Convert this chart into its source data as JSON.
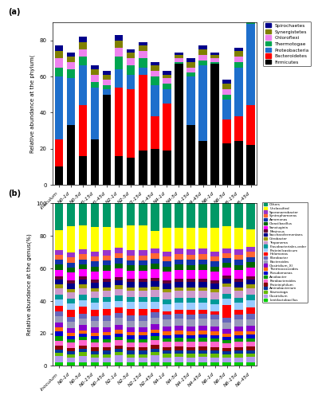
{
  "phylum_labels": [
    "Inoculum",
    "N0-1d",
    "N0-5d",
    "N0-15d",
    "N0-45d",
    "N2-1d",
    "N2-5d",
    "N2-15d",
    "N2-45d",
    "N4-1d",
    "N4-5d",
    "N4-15d",
    "N4-45d",
    "N6-1d",
    "N6-5d",
    "N6-15d",
    "N6-45d"
  ],
  "phylum_data": {
    "Firmicutes": [
      10,
      33,
      16,
      25,
      50,
      16,
      15,
      19,
      20,
      19,
      67,
      33,
      24,
      67,
      23,
      24,
      22
    ],
    "Bacteroidetes": [
      15,
      0,
      28,
      0,
      0,
      38,
      38,
      42,
      18,
      26,
      0,
      0,
      0,
      0,
      13,
      14,
      22
    ],
    "Proteobacteria": [
      35,
      26,
      22,
      29,
      3,
      10,
      8,
      4,
      17,
      8,
      0,
      27,
      42,
      0,
      11,
      27,
      45
    ],
    "Thermotogae": [
      5,
      5,
      5,
      3,
      2,
      7,
      5,
      5,
      5,
      3,
      1,
      2,
      3,
      1,
      3,
      3,
      3
    ],
    "Chloroflexi": [
      5,
      4,
      4,
      4,
      3,
      5,
      4,
      4,
      3,
      3,
      2,
      3,
      3,
      2,
      3,
      3,
      3
    ],
    "Synergistetes": [
      4,
      3,
      4,
      3,
      3,
      4,
      3,
      3,
      3,
      2,
      2,
      3,
      3,
      2,
      3,
      3,
      3
    ],
    "Spirochaetes": [
      3,
      2,
      3,
      2,
      2,
      3,
      2,
      2,
      2,
      2,
      1,
      2,
      2,
      1,
      2,
      2,
      2
    ]
  },
  "phylum_colors": {
    "Firmicutes": "#000000",
    "Bacteroidetes": "#ff0000",
    "Proteobacteria": "#1e6fcc",
    "Thermotogae": "#00a550",
    "Chloroflexi": "#ee82ee",
    "Synergistetes": "#808000",
    "Spirochaetes": "#00008b"
  },
  "genus_labels": [
    "Inoculum",
    "N0-1d",
    "N0-5d",
    "N0-15d",
    "N0-45d",
    "N2-1d",
    "N2-5d",
    "N2-15d",
    "N2-45d",
    "N4-1d",
    "N4-5d",
    "N4-15d",
    "N4-45d",
    "N6-1d",
    "N6-5d",
    "N6-15d",
    "N6-45d"
  ],
  "genus_list": [
    "Lentilactobacillus",
    "Clostridium",
    "Kosmotoga",
    "Aminobacterium",
    "Proteiniphilum",
    "Parabacteroides",
    "Arcobacter",
    "Pseudomonas",
    "Thermococcoides",
    "Clostridium_XI",
    "Bacteroides",
    "Fibrobacter",
    "Halomonas",
    "Proteinilcasticum",
    "Flavobacteriales-order",
    "Treponema",
    "Citrobacter",
    "Saccharofermentans",
    "Mesincus",
    "Sanxiuginia",
    "Cloaciibacillus",
    "Aeromonas",
    "Syntrophomonas",
    "Sporanaerobacter",
    "Unclassified",
    "Others"
  ],
  "genus_legend_labels": [
    "Others",
    "Unclassified",
    "Sporanaerobacter",
    "Syntrophomonas",
    "Aeromonas",
    "Cloaciibacillus",
    "Sanxiuginia",
    "Mesincus",
    "Saccharofermentans",
    "Citrobacter",
    "Treponema",
    "Flavobacteriales-order",
    "Proteinilcasticum",
    "Halomonas",
    "Fibrobacter",
    "Bacteroides",
    "Clostridium_XI",
    "Thermococcoides",
    "Pseudomonas",
    "Arcobacter",
    "Parabacteroides",
    "Proteiniphilum",
    "Aminobacterium",
    "Kosmotoga",
    "Clostridium",
    "Lentilactobacillus"
  ],
  "genus_colors": {
    "Lentilactobacillus": "#00cc00",
    "Clostridium": "#b399ee",
    "Kosmotoga": "#66bb00",
    "Aminobacterium": "#003399",
    "Proteiniphilum": "#880000",
    "Parabacteroides": "#ff66cc",
    "Arcobacter": "#009900",
    "Pseudomonas": "#0000cc",
    "Thermococcoides": "#ff6600",
    "Clostridium_XI": "#8800cc",
    "Bacteroides": "#9999bb",
    "Fibrobacter": "#6666bb",
    "Halomonas": "#ff0000",
    "Proteinilcasticum": "#99ccff",
    "Flavobacteriales-order": "#009999",
    "Treponema": "#cc99cc",
    "Citrobacter": "#999900",
    "Saccharofermentans": "#000088",
    "Mesincus": "#660033",
    "Sanxiuginia": "#ff00ff",
    "Cloaciibacillus": "#006600",
    "Aeromonas": "#1133aa",
    "Syntrophomonas": "#ff6633",
    "Sporanaerobacter": "#9933cc",
    "Unclassified": "#ffff00",
    "Others": "#009966"
  },
  "genus_data": {
    "Lentilactobacillus": [
      2,
      2,
      2,
      2,
      2,
      2,
      2,
      2,
      2,
      2,
      2,
      2,
      2,
      2,
      2,
      2,
      2
    ],
    "Clostridium": [
      4,
      3,
      4,
      3,
      3,
      4,
      3,
      3,
      4,
      3,
      3,
      3,
      3,
      3,
      3,
      3,
      3
    ],
    "Kosmotoga": [
      2,
      2,
      2,
      2,
      2,
      2,
      2,
      2,
      2,
      2,
      2,
      2,
      2,
      2,
      2,
      2,
      2
    ],
    "Aminobacterium": [
      2,
      2,
      2,
      2,
      2,
      2,
      2,
      2,
      2,
      2,
      2,
      2,
      2,
      2,
      2,
      2,
      2
    ],
    "Proteiniphilum": [
      2,
      2,
      2,
      2,
      2,
      2,
      2,
      2,
      2,
      2,
      2,
      2,
      2,
      2,
      2,
      2,
      2
    ],
    "Parabacteroides": [
      3,
      3,
      3,
      3,
      3,
      3,
      3,
      3,
      3,
      3,
      3,
      3,
      3,
      3,
      3,
      3,
      3
    ],
    "Arcobacter": [
      3,
      2,
      2,
      2,
      2,
      2,
      2,
      2,
      2,
      2,
      2,
      2,
      2,
      2,
      2,
      2,
      2
    ],
    "Pseudomonas": [
      3,
      2,
      2,
      2,
      2,
      2,
      2,
      2,
      2,
      2,
      2,
      2,
      2,
      2,
      2,
      2,
      2
    ],
    "Thermococcoides": [
      2,
      2,
      2,
      2,
      2,
      2,
      2,
      2,
      2,
      2,
      2,
      2,
      2,
      2,
      2,
      2,
      2
    ],
    "Clostridium_XI": [
      3,
      3,
      3,
      3,
      3,
      3,
      3,
      3,
      3,
      3,
      3,
      3,
      3,
      3,
      3,
      3,
      3
    ],
    "Bacteroides": [
      4,
      4,
      4,
      4,
      4,
      4,
      4,
      4,
      4,
      4,
      4,
      4,
      4,
      4,
      4,
      4,
      4
    ],
    "Fibrobacter": [
      3,
      3,
      3,
      3,
      3,
      3,
      3,
      3,
      3,
      3,
      3,
      3,
      3,
      3,
      3,
      3,
      3
    ],
    "Halomonas": [
      3,
      4,
      4,
      4,
      4,
      3,
      4,
      4,
      2,
      2,
      2,
      3,
      2,
      2,
      8,
      3,
      4
    ],
    "Proteinilcasticum": [
      4,
      4,
      4,
      4,
      4,
      4,
      4,
      4,
      4,
      4,
      4,
      4,
      4,
      4,
      4,
      4,
      4
    ],
    "Flavobacteriales-order": [
      3,
      3,
      3,
      3,
      3,
      3,
      3,
      3,
      3,
      3,
      3,
      3,
      3,
      3,
      3,
      3,
      3
    ],
    "Treponema": [
      4,
      4,
      4,
      4,
      4,
      4,
      4,
      4,
      4,
      4,
      4,
      4,
      4,
      4,
      4,
      4,
      4
    ],
    "Citrobacter": [
      2,
      2,
      2,
      2,
      2,
      2,
      2,
      2,
      2,
      2,
      2,
      2,
      2,
      2,
      2,
      2,
      2
    ],
    "Saccharofermentans": [
      3,
      3,
      3,
      3,
      3,
      3,
      3,
      3,
      3,
      3,
      3,
      3,
      3,
      3,
      3,
      3,
      3
    ],
    "Mesincus": [
      2,
      2,
      2,
      2,
      2,
      2,
      2,
      2,
      2,
      2,
      2,
      2,
      2,
      2,
      2,
      2,
      2
    ],
    "Sanxiuginia": [
      4,
      5,
      4,
      5,
      5,
      5,
      5,
      5,
      5,
      5,
      5,
      5,
      5,
      5,
      5,
      5,
      5
    ],
    "Cloaciibacillus": [
      3,
      3,
      3,
      3,
      3,
      3,
      3,
      3,
      3,
      3,
      3,
      3,
      3,
      3,
      3,
      3,
      3
    ],
    "Aeromonas": [
      3,
      3,
      3,
      3,
      3,
      3,
      3,
      3,
      3,
      3,
      3,
      3,
      3,
      3,
      3,
      3,
      3
    ],
    "Syntrophomonas": [
      3,
      3,
      3,
      3,
      3,
      3,
      3,
      3,
      3,
      3,
      3,
      3,
      3,
      3,
      3,
      3,
      3
    ],
    "Sporanaerobacter": [
      3,
      3,
      3,
      3,
      3,
      3,
      3,
      3,
      3,
      3,
      3,
      3,
      3,
      3,
      3,
      3,
      3
    ],
    "Unclassified": [
      12,
      16,
      14,
      15,
      14,
      12,
      15,
      15,
      10,
      14,
      12,
      13,
      12,
      14,
      14,
      13,
      10
    ],
    "Others": [
      16,
      14,
      13,
      14,
      14,
      14,
      13,
      13,
      16,
      14,
      14,
      14,
      14,
      14,
      14,
      14,
      15
    ]
  },
  "title_a": "(a)",
  "title_b": "(b)",
  "ylabel_a": "Relative abundance at the phylum(",
  "ylabel_b": "Relative abundance at the genus(%)",
  "background": "#ffffff"
}
